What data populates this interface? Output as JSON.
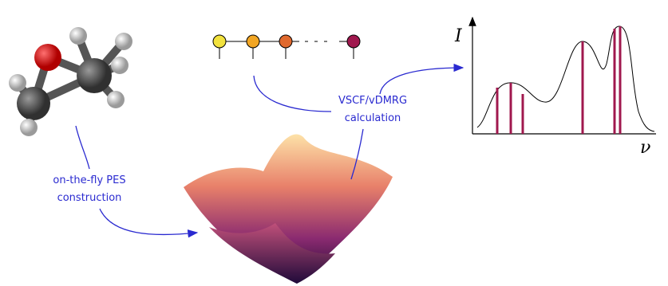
{
  "labels": {
    "pes": [
      "on-the-fly PES",
      "construction"
    ],
    "method": [
      "VSCF/vDMRG",
      "calculation"
    ]
  },
  "spectrum": {
    "y_axis": "I",
    "x_axis": "ν"
  }
}
